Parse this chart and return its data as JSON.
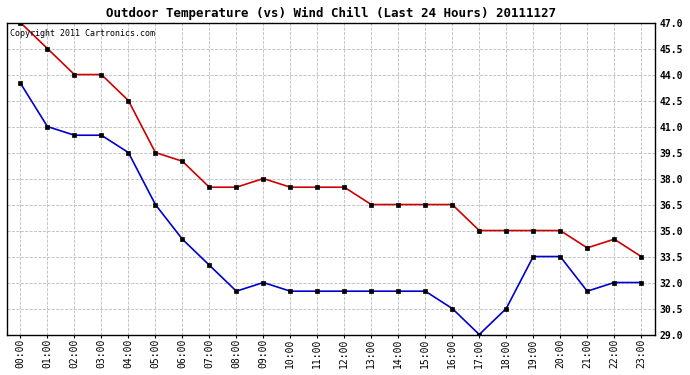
{
  "title": "Outdoor Temperature (vs) Wind Chill (Last 24 Hours) 20111127",
  "copyright_text": "Copyright 2011 Cartronics.com",
  "x_labels": [
    "00:00",
    "01:00",
    "02:00",
    "03:00",
    "04:00",
    "05:00",
    "06:00",
    "07:00",
    "08:00",
    "09:00",
    "10:00",
    "11:00",
    "12:00",
    "13:00",
    "14:00",
    "15:00",
    "16:00",
    "17:00",
    "18:00",
    "19:00",
    "20:00",
    "21:00",
    "22:00",
    "23:00"
  ],
  "temp_data": [
    47.0,
    45.5,
    44.0,
    44.0,
    42.5,
    39.5,
    39.0,
    37.5,
    37.5,
    38.0,
    37.5,
    37.5,
    37.5,
    36.5,
    36.5,
    36.5,
    36.5,
    35.0,
    35.0,
    35.0,
    35.0,
    34.0,
    34.5,
    33.5
  ],
  "windchill_data": [
    43.5,
    41.0,
    40.5,
    40.5,
    39.5,
    36.5,
    34.5,
    33.0,
    31.5,
    32.0,
    31.5,
    31.5,
    31.5,
    31.5,
    31.5,
    31.5,
    30.5,
    29.0,
    30.5,
    33.5,
    33.5,
    31.5,
    32.0,
    32.0
  ],
  "temp_color": "#cc0000",
  "windchill_color": "#0000cc",
  "ylim_min": 29.0,
  "ylim_max": 47.0,
  "ytick_step": 1.5,
  "grid_color": "#bbbbbb",
  "background_color": "#ffffff",
  "plot_bg_color": "#ffffff",
  "title_fontsize": 9,
  "copyright_fontsize": 6,
  "tick_fontsize": 7,
  "marker": "s",
  "marker_size": 3,
  "line_width": 1.2
}
